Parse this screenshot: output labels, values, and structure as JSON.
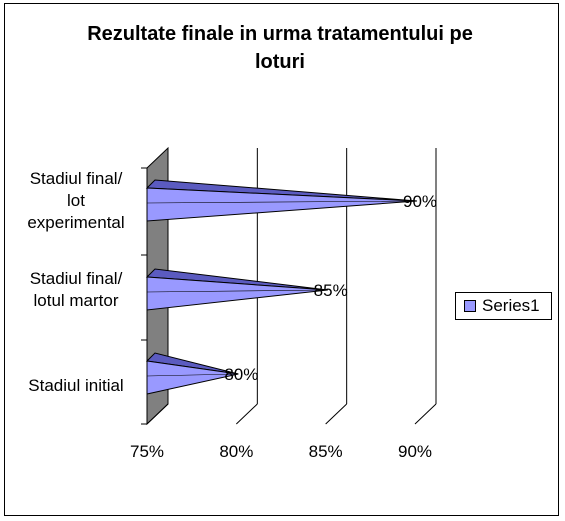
{
  "chart_data": {
    "type": "bar",
    "orientation": "horizontal",
    "style": "3d-cone",
    "title": "Rezultate finale in urma tratamentului pe loturi",
    "categories": [
      "Stadiul initial",
      "Stadiul final/ lotul martor",
      "Stadiul final/ lot experimental"
    ],
    "series": [
      {
        "name": "Series1",
        "values": [
          80,
          85,
          90
        ],
        "data_labels": [
          "80%",
          "85%",
          "90%"
        ]
      }
    ],
    "x_ticks": [
      "75%",
      "80%",
      "85%",
      "90%"
    ],
    "xlim": [
      75,
      90
    ],
    "grid": "vertical",
    "legend_position": "right",
    "colors": {
      "series": "#9999ff",
      "series_dark": "#5b5bc0",
      "wall": "#808080"
    }
  }
}
